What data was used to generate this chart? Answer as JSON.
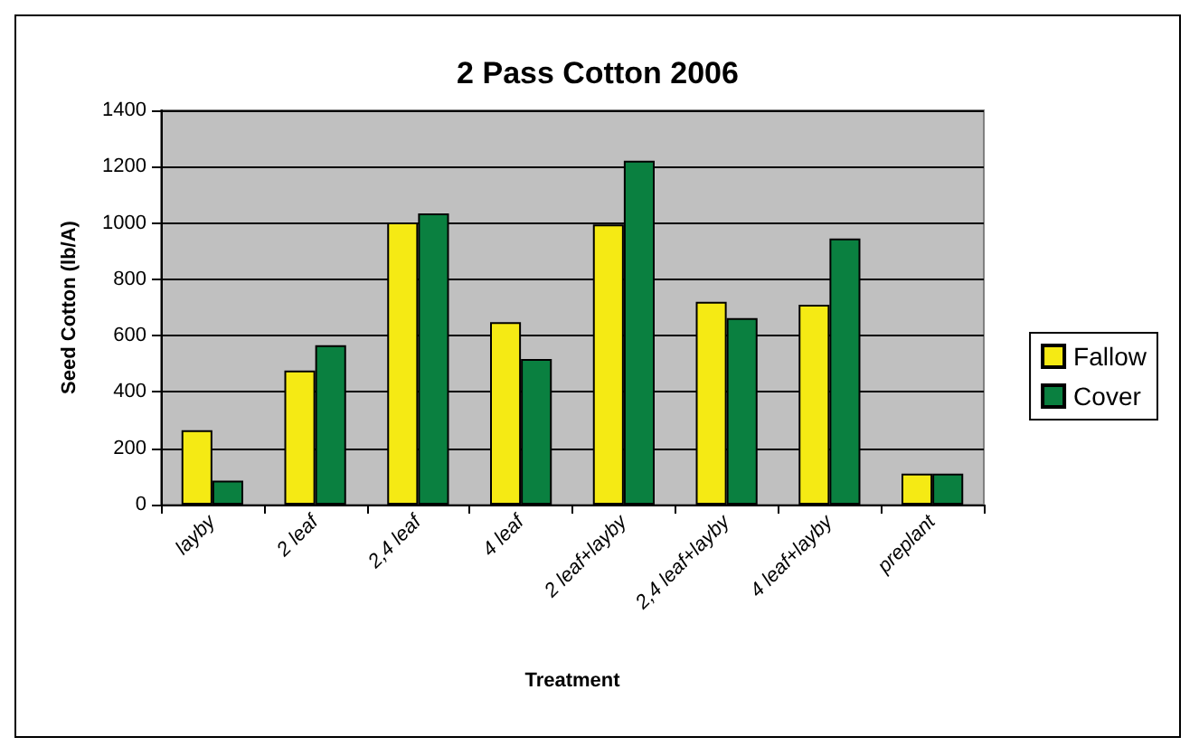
{
  "chart_data": {
    "type": "bar",
    "title": "2 Pass Cotton 2006",
    "xlabel": "Treatment",
    "ylabel": "Seed Cotton (lb/A)",
    "categories": [
      "layby",
      "2 leaf",
      "2,4 leaf",
      "4 leaf",
      "2 leaf+layby",
      "2,4 leaf+layby",
      "4 leaf+layby",
      "preplant"
    ],
    "series": [
      {
        "name": "Fallow",
        "color": "#f5ea14",
        "values": [
          264,
          476,
          1002,
          648,
          995,
          720,
          710,
          110
        ]
      },
      {
        "name": "Cover",
        "color": "#0a8040",
        "values": [
          85,
          566,
          1034,
          517,
          1221,
          662,
          945,
          110
        ]
      }
    ],
    "ylim": [
      0,
      1400
    ],
    "yticks": [
      0,
      200,
      400,
      600,
      800,
      1000,
      1200,
      1400
    ],
    "grid": "y",
    "legend": "right"
  }
}
